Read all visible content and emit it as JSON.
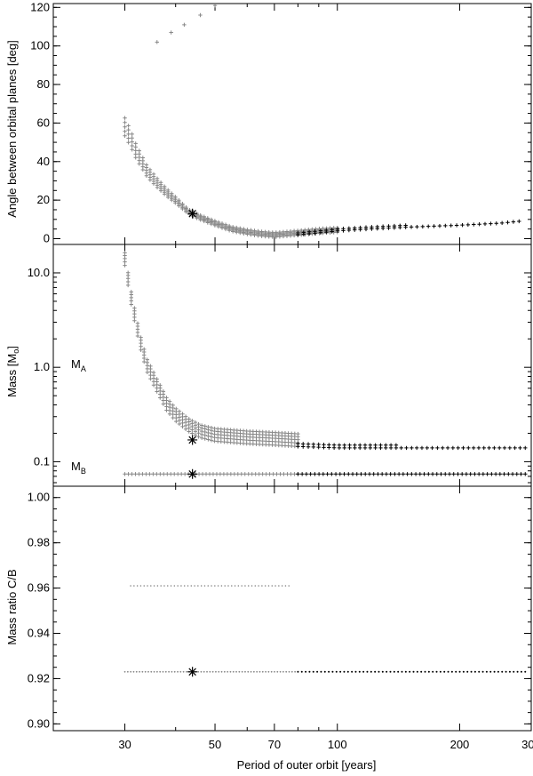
{
  "chart_data": {
    "type": "scatter",
    "x_scale": "log",
    "x_ticks": [
      30,
      50,
      70,
      100,
      200,
      300
    ],
    "xlim": [
      20,
      300
    ],
    "xlabel": "Period of outer orbit [years]",
    "colors": {
      "gray": "#888888",
      "black": "#000000"
    },
    "panels": [
      {
        "name": "angle",
        "ylabel": "Angle between orbital planes [deg]",
        "y_scale": "linear",
        "ylim": [
          -3,
          122
        ],
        "y_ticks": [
          0,
          20,
          40,
          60,
          80,
          100,
          120
        ],
        "y_tick_labels": [
          "0",
          "20",
          "40",
          "60",
          "80",
          "100",
          "120"
        ],
        "series": [
          {
            "color": "gray",
            "upper_branch": [
              [
                36,
                102
              ],
              [
                39,
                107
              ],
              [
                42,
                111
              ],
              [
                46,
                116
              ],
              [
                50,
                121
              ]
            ]
          },
          {
            "color": "gray",
            "curve": [
              [
                30,
                58
              ],
              [
                31,
                52
              ],
              [
                32,
                45
              ],
              [
                33,
                40
              ],
              [
                34,
                35
              ],
              [
                36,
                29
              ],
              [
                38,
                24
              ],
              [
                40,
                20
              ],
              [
                43,
                14
              ],
              [
                46,
                11
              ],
              [
                50,
                8
              ],
              [
                55,
                5
              ],
              [
                60,
                3.5
              ],
              [
                65,
                2.5
              ],
              [
                70,
                2
              ],
              [
                75,
                2.5
              ],
              [
                80,
                3
              ],
              [
                90,
                4
              ],
              [
                100,
                4.5
              ]
            ]
          },
          {
            "color": "black",
            "tail": [
              [
                80,
                2
              ],
              [
                90,
                3
              ],
              [
                100,
                4
              ],
              [
                120,
                5
              ],
              [
                150,
                6
              ],
              [
                200,
                7
              ],
              [
                250,
                8
              ],
              [
                280,
                9
              ]
            ]
          }
        ],
        "marker": {
          "x": 44,
          "y": 13
        }
      },
      {
        "name": "mass",
        "ylabel": "Mass [M",
        "ylabel_sub": "o",
        "ylabel_close": "]",
        "y_scale": "log",
        "ylim": [
          0.055,
          20
        ],
        "y_ticks": [
          0.1,
          1.0,
          10.0
        ],
        "y_tick_labels": [
          "0.1",
          "1.0",
          "10.0"
        ],
        "label_a": "M",
        "label_a_sub": "A",
        "label_b": "M",
        "label_b_sub": "B",
        "series": [
          {
            "color": "gray",
            "ma_curve": [
              [
                30,
                12
              ],
              [
                31,
                5
              ],
              [
                32,
                2.5
              ],
              [
                33,
                1.4
              ],
              [
                34,
                0.9
              ],
              [
                36,
                0.55
              ],
              [
                38,
                0.35
              ],
              [
                40,
                0.27
              ],
              [
                43,
                0.21
              ],
              [
                46,
                0.18
              ],
              [
                50,
                0.165
              ],
              [
                60,
                0.155
              ],
              [
                70,
                0.15
              ],
              [
                80,
                0.145
              ]
            ]
          },
          {
            "color": "black",
            "ma_tail": [
              [
                80,
                0.145
              ],
              [
                100,
                0.14
              ],
              [
                150,
                0.14
              ],
              [
                200,
                0.14
              ],
              [
                250,
                0.14
              ],
              [
                290,
                0.14
              ]
            ]
          },
          {
            "color": "gray",
            "mb_line": [
              30,
              80,
              0.074
            ]
          },
          {
            "color": "black",
            "mb_tail": [
              80,
              290,
              0.074
            ]
          }
        ],
        "marker_a": {
          "x": 44,
          "y": 0.17
        },
        "marker_b": {
          "x": 44,
          "y": 0.074
        }
      },
      {
        "name": "ratio",
        "ylabel": "Mass ratio C/B",
        "y_scale": "linear",
        "ylim": [
          0.897,
          1.005
        ],
        "y_ticks": [
          0.9,
          0.92,
          0.94,
          0.96,
          0.98,
          1.0
        ],
        "y_tick_labels": [
          "0.90",
          "0.92",
          "0.94",
          "0.96",
          "0.98",
          "1.00"
        ],
        "series": [
          {
            "color": "gray",
            "upper_line": [
              31,
              76,
              0.961
            ]
          },
          {
            "color": "gray",
            "lower_line": [
              30,
              80,
              0.923
            ]
          },
          {
            "color": "black",
            "lower_tail": [
              80,
              290,
              0.923
            ]
          }
        ],
        "marker": {
          "x": 44,
          "y": 0.923
        }
      }
    ]
  }
}
